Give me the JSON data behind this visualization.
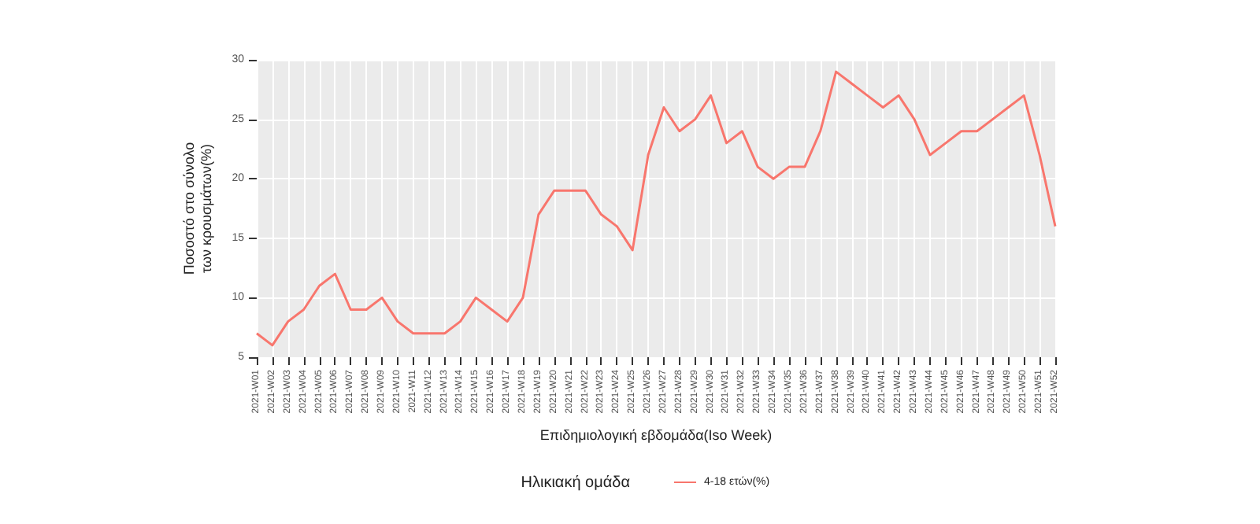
{
  "chart_data": {
    "type": "line",
    "xlabel": "Επιδημιολογική εβδομάδα(Iso Week)",
    "ylabel": "Ποσοστό στο σύνολο\nτων κρουσμάτων(%)",
    "legend_title": "Ηλικιακή ομάδα",
    "categories": [
      "2021-W01",
      "2021-W02",
      "2021-W03",
      "2021-W04",
      "2021-W05",
      "2021-W06",
      "2021-W07",
      "2021-W08",
      "2021-W09",
      "2021-W10",
      "2021-W11",
      "2021-W12",
      "2021-W13",
      "2021-W14",
      "2021-W15",
      "2021-W16",
      "2021-W17",
      "2021-W18",
      "2021-W19",
      "2021-W20",
      "2021-W21",
      "2021-W22",
      "2021-W23",
      "2021-W24",
      "2021-W25",
      "2021-W26",
      "2021-W27",
      "2021-W28",
      "2021-W29",
      "2021-W30",
      "2021-W31",
      "2021-W32",
      "2021-W33",
      "2021-W34",
      "2021-W35",
      "2021-W36",
      "2021-W37",
      "2021-W38",
      "2021-W39",
      "2021-W40",
      "2021-W41",
      "2021-W42",
      "2021-W43",
      "2021-W44",
      "2021-W45",
      "2021-W46",
      "2021-W47",
      "2021-W48",
      "2021-W49",
      "2021-W50",
      "2021-W51",
      "2021-W52"
    ],
    "series": [
      {
        "name": "4-18 ετών(%)",
        "color": "#f8766d",
        "values": [
          7,
          6,
          8,
          9,
          11,
          12,
          9,
          9,
          10,
          8,
          7,
          7,
          7,
          8,
          10,
          9,
          8,
          10,
          17,
          19,
          19,
          19,
          17,
          16,
          14,
          22,
          26,
          24,
          25,
          27,
          23,
          24,
          21,
          20,
          21,
          21,
          24,
          29,
          28,
          27,
          26,
          27,
          25,
          22,
          23,
          24,
          24,
          25,
          26,
          27,
          22,
          16
        ]
      }
    ],
    "ylim": [
      5,
      30
    ],
    "yticks": [
      5,
      10,
      15,
      20,
      25,
      30
    ],
    "grid": true,
    "legend": "bottom",
    "marker": "none",
    "line_style": "solid"
  }
}
